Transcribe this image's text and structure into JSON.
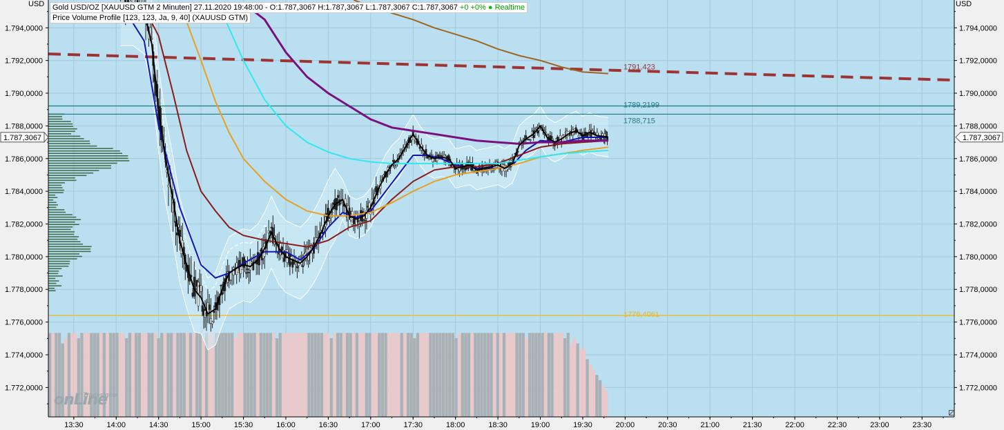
{
  "header": {
    "line1_prefix": "Gold USD/OZ [XAUUSD GTM 2 Minuten] 27.11.2020 19:48:00 - O:1.787,3067 H:1.787,3067 L:1.787,3067 C:1.787,3067",
    "line1_change": "+0 +0%",
    "line1_dot": "●",
    "line1_status": "Realtime",
    "line2": "Price Volume Profile [123, 123, Ja, 9, 40] (XAUUSD GTM)"
  },
  "axis": {
    "left_unit": "USD",
    "right_unit": "USD"
  },
  "logo": {
    "text": "onLine",
    "sub": "Tradesignal"
  },
  "colors": {
    "background": "#b9dff0",
    "grid": "#a6c9d9",
    "candles": "#202020",
    "price_line": "#000000",
    "ma_blue": "#1414b4",
    "ma_maroon": "#8b1a1a",
    "ma_orange": "#e8a020",
    "ma_cyan": "#30e8f0",
    "ma_purple": "#7a1080",
    "ma_brown": "#a0641e",
    "trend_dashed": "#9c3434",
    "hline_teal": "#207880",
    "hline_yellow": "#f0b818",
    "volume_pink": "#ecc8c8",
    "volume_gray": "#aab0b3",
    "profile_green": "#2e5a2e"
  },
  "chart_data": {
    "type": "candlestick",
    "title": "Gold USD/OZ [XAUUSD GTM 2 Minuten]",
    "ylim": [
      1770.2,
      1795.7
    ],
    "y_ticks": [
      1772,
      1774,
      1776,
      1778,
      1780,
      1782,
      1784,
      1786,
      1788,
      1790,
      1792,
      1794
    ],
    "y_tick_labels": [
      "1.772,0000",
      "1.774,0000",
      "1.776,0000",
      "1.778,0000",
      "1.780,0000",
      "1.782,0000",
      "1.784,0000",
      "1.786,0000",
      "1.788,0000",
      "1.790,0000",
      "1.792,0000",
      "1.794,0000"
    ],
    "x_ticks": [
      "13:30",
      "14:00",
      "14:30",
      "15:00",
      "15:30",
      "16:00",
      "16:30",
      "17:00",
      "17:30",
      "18:00",
      "18:30",
      "19:00",
      "19:30",
      "20:00",
      "20:30",
      "21:00",
      "21:30",
      "22:00",
      "22:30",
      "23:00",
      "23:30"
    ],
    "xlim_hours": [
      13.2,
      23.88
    ],
    "last_price_label": "1.787,3067",
    "last_price": 1787.3067,
    "annotations": [
      {
        "label": "1791,423",
        "value": 1791.423,
        "color": "#9c3434"
      },
      {
        "label": "1789,2199",
        "value": 1789.2199,
        "color": "#207880"
      },
      {
        "label": "1788,715",
        "value": 1788.715,
        "color": "#207880"
      },
      {
        "label": "1776,4061",
        "value": 1776.4061,
        "color": "#f0b818"
      }
    ],
    "horizontal_lines": [
      {
        "value": 1789.2199,
        "color": "#207880"
      },
      {
        "value": 1788.715,
        "color": "#207880"
      },
      {
        "value": 1776.4061,
        "color": "#f0b818"
      }
    ],
    "trend_line": {
      "start": [
        13.2,
        1792.4
      ],
      "end": [
        23.88,
        1790.8
      ],
      "style": "dashed"
    },
    "close_path": [
      [
        14.05,
        1795.5
      ],
      [
        14.2,
        1795.5
      ],
      [
        14.33,
        1795.0
      ],
      [
        14.42,
        1793.0
      ],
      [
        14.5,
        1789.0
      ],
      [
        14.58,
        1786.0
      ],
      [
        14.67,
        1783.5
      ],
      [
        14.75,
        1781.0
      ],
      [
        14.83,
        1779.5
      ],
      [
        14.92,
        1778.0
      ],
      [
        15.0,
        1777.5
      ],
      [
        15.08,
        1776.5
      ],
      [
        15.17,
        1776.8
      ],
      [
        15.25,
        1778.0
      ],
      [
        15.33,
        1779.0
      ],
      [
        15.42,
        1779.3
      ],
      [
        15.5,
        1779.5
      ],
      [
        15.58,
        1779.4
      ],
      [
        15.67,
        1779.8
      ],
      [
        15.75,
        1780.5
      ],
      [
        15.83,
        1781.5
      ],
      [
        15.92,
        1780.5
      ],
      [
        16.0,
        1780.0
      ],
      [
        16.08,
        1779.8
      ],
      [
        16.17,
        1779.6
      ],
      [
        16.25,
        1780.0
      ],
      [
        16.33,
        1780.6
      ],
      [
        16.42,
        1781.5
      ],
      [
        16.5,
        1782.5
      ],
      [
        16.58,
        1783.2
      ],
      [
        16.67,
        1783.5
      ],
      [
        16.75,
        1782.5
      ],
      [
        16.83,
        1782.3
      ],
      [
        16.92,
        1782.5
      ],
      [
        17.0,
        1783.0
      ],
      [
        17.08,
        1784.0
      ],
      [
        17.17,
        1785.0
      ],
      [
        17.25,
        1785.6
      ],
      [
        17.33,
        1786.0
      ],
      [
        17.42,
        1786.8
      ],
      [
        17.5,
        1787.5
      ],
      [
        17.58,
        1786.8
      ],
      [
        17.67,
        1786.2
      ],
      [
        17.75,
        1786.0
      ],
      [
        17.83,
        1786.1
      ],
      [
        17.92,
        1786.0
      ],
      [
        18.0,
        1785.4
      ],
      [
        18.08,
        1785.5
      ],
      [
        18.17,
        1785.6
      ],
      [
        18.25,
        1785.3
      ],
      [
        18.33,
        1785.4
      ],
      [
        18.42,
        1785.5
      ],
      [
        18.5,
        1785.6
      ],
      [
        18.58,
        1785.4
      ],
      [
        18.67,
        1785.7
      ],
      [
        18.75,
        1786.8
      ],
      [
        18.83,
        1787.2
      ],
      [
        18.92,
        1787.5
      ],
      [
        19.0,
        1788.0
      ],
      [
        19.08,
        1787.3
      ],
      [
        19.17,
        1787.0
      ],
      [
        19.25,
        1787.2
      ],
      [
        19.33,
        1787.5
      ],
      [
        19.42,
        1787.7
      ],
      [
        19.5,
        1787.4
      ],
      [
        19.58,
        1787.6
      ],
      [
        19.67,
        1787.4
      ],
      [
        19.75,
        1787.35
      ],
      [
        19.8,
        1787.31
      ]
    ],
    "series": [
      {
        "name": "",
        "color": "#1414b4",
        "points": [
          [
            14.05,
            1795.5
          ],
          [
            14.33,
            1793.2
          ],
          [
            14.5,
            1788.0
          ],
          [
            14.75,
            1783.0
          ],
          [
            15.0,
            1779.5
          ],
          [
            15.17,
            1778.7
          ],
          [
            15.33,
            1779.0
          ],
          [
            15.5,
            1779.6
          ],
          [
            15.75,
            1780.3
          ],
          [
            16.0,
            1780.3
          ],
          [
            16.17,
            1779.8
          ],
          [
            16.33,
            1780.5
          ],
          [
            16.5,
            1781.8
          ],
          [
            16.67,
            1782.7
          ],
          [
            16.83,
            1782.4
          ],
          [
            17.0,
            1782.8
          ],
          [
            17.25,
            1784.5
          ],
          [
            17.5,
            1786.2
          ],
          [
            17.67,
            1786.2
          ],
          [
            17.83,
            1786.0
          ],
          [
            18.0,
            1785.6
          ],
          [
            18.25,
            1785.4
          ],
          [
            18.5,
            1785.4
          ],
          [
            18.67,
            1785.6
          ],
          [
            18.83,
            1786.5
          ],
          [
            19.0,
            1787.1
          ],
          [
            19.25,
            1787.0
          ],
          [
            19.5,
            1787.3
          ],
          [
            19.75,
            1787.3
          ],
          [
            19.8,
            1787.3
          ]
        ]
      },
      {
        "name": "",
        "color": "#8b1a1a",
        "points": [
          [
            14.3,
            1795.5
          ],
          [
            14.5,
            1793.5
          ],
          [
            14.67,
            1790.0
          ],
          [
            14.83,
            1786.5
          ],
          [
            15.0,
            1784.0
          ],
          [
            15.17,
            1782.8
          ],
          [
            15.33,
            1781.8
          ],
          [
            15.5,
            1781.3
          ],
          [
            15.75,
            1781.0
          ],
          [
            16.0,
            1780.8
          ],
          [
            16.25,
            1780.6
          ],
          [
            16.5,
            1781.0
          ],
          [
            16.75,
            1781.8
          ],
          [
            17.0,
            1782.2
          ],
          [
            17.25,
            1783.5
          ],
          [
            17.5,
            1784.6
          ],
          [
            17.75,
            1785.3
          ],
          [
            18.0,
            1785.5
          ],
          [
            18.25,
            1785.5
          ],
          [
            18.5,
            1785.7
          ],
          [
            18.75,
            1786.2
          ],
          [
            19.0,
            1786.7
          ],
          [
            19.25,
            1786.9
          ],
          [
            19.5,
            1787.0
          ],
          [
            19.8,
            1787.1
          ]
        ]
      },
      {
        "name": "",
        "color": "#e8a020",
        "points": [
          [
            14.75,
            1795.5
          ],
          [
            15.0,
            1792.0
          ],
          [
            15.17,
            1789.5
          ],
          [
            15.33,
            1787.6
          ],
          [
            15.5,
            1786.0
          ],
          [
            15.75,
            1784.6
          ],
          [
            16.0,
            1783.5
          ],
          [
            16.25,
            1782.8
          ],
          [
            16.5,
            1782.5
          ],
          [
            16.75,
            1782.5
          ],
          [
            17.0,
            1782.7
          ],
          [
            17.25,
            1783.3
          ],
          [
            17.5,
            1784.0
          ],
          [
            17.75,
            1784.6
          ],
          [
            18.0,
            1785.0
          ],
          [
            18.25,
            1785.2
          ],
          [
            18.5,
            1785.4
          ],
          [
            18.75,
            1785.7
          ],
          [
            19.0,
            1786.1
          ],
          [
            19.25,
            1786.3
          ],
          [
            19.5,
            1786.5
          ],
          [
            19.8,
            1786.7
          ]
        ]
      },
      {
        "name": "",
        "color": "#30e8f0",
        "points": [
          [
            15.2,
            1795.5
          ],
          [
            15.5,
            1792.0
          ],
          [
            15.75,
            1789.6
          ],
          [
            16.0,
            1788.0
          ],
          [
            16.25,
            1787.0
          ],
          [
            16.5,
            1786.4
          ],
          [
            16.75,
            1786.0
          ],
          [
            17.0,
            1785.8
          ],
          [
            17.25,
            1785.7
          ],
          [
            17.5,
            1785.7
          ],
          [
            17.75,
            1785.7
          ],
          [
            18.0,
            1785.7
          ],
          [
            18.25,
            1785.7
          ],
          [
            18.5,
            1785.7
          ],
          [
            18.75,
            1785.9
          ],
          [
            19.0,
            1786.1
          ],
          [
            19.25,
            1786.3
          ],
          [
            19.5,
            1786.4
          ],
          [
            19.8,
            1786.5
          ]
        ]
      },
      {
        "name": "",
        "color": "#7a1080",
        "points": [
          [
            15.5,
            1795.5
          ],
          [
            15.75,
            1794.5
          ],
          [
            16.0,
            1792.5
          ],
          [
            16.25,
            1791.0
          ],
          [
            16.5,
            1790.0
          ],
          [
            16.75,
            1789.2
          ],
          [
            17.0,
            1788.4
          ],
          [
            17.25,
            1787.9
          ],
          [
            17.5,
            1787.7
          ],
          [
            17.75,
            1787.5
          ],
          [
            18.0,
            1787.3
          ],
          [
            18.25,
            1787.1
          ],
          [
            18.5,
            1787.0
          ],
          [
            18.75,
            1786.9
          ],
          [
            19.0,
            1787.0
          ],
          [
            19.25,
            1787.0
          ],
          [
            19.5,
            1787.1
          ],
          [
            19.8,
            1787.1
          ]
        ]
      },
      {
        "name": "",
        "color": "#a0641e",
        "points": [
          [
            16.8,
            1795.7
          ],
          [
            17.0,
            1795.3
          ],
          [
            17.25,
            1794.9
          ],
          [
            17.5,
            1794.5
          ],
          [
            17.75,
            1794.0
          ],
          [
            18.0,
            1793.6
          ],
          [
            18.25,
            1793.2
          ],
          [
            18.5,
            1792.7
          ],
          [
            18.75,
            1792.3
          ],
          [
            19.0,
            1792.0
          ],
          [
            19.25,
            1791.6
          ],
          [
            19.5,
            1791.3
          ],
          [
            19.8,
            1791.2
          ]
        ]
      }
    ],
    "volume": [
      16,
      16,
      16,
      16,
      14,
      15,
      16,
      16,
      16,
      15,
      16,
      16,
      16,
      16,
      16,
      16,
      16,
      16,
      16,
      16,
      16,
      16,
      16,
      16,
      15,
      16,
      16,
      16,
      16,
      16,
      16,
      16,
      16,
      16,
      15,
      16,
      16,
      16,
      16,
      16,
      16,
      16,
      16,
      16,
      16,
      16,
      16,
      16,
      15,
      16,
      16,
      16,
      16,
      16,
      16,
      16,
      16,
      16,
      15,
      16,
      16,
      16,
      16,
      16,
      16,
      16,
      16,
      16,
      16,
      16,
      16,
      15,
      16,
      16,
      16,
      16,
      16,
      16,
      16,
      16,
      16,
      16,
      16,
      16,
      16,
      16,
      16,
      16,
      15,
      16,
      16,
      16,
      16,
      16,
      16,
      16,
      16,
      16,
      16,
      16,
      16,
      16,
      16,
      16,
      16,
      16,
      16,
      16,
      16,
      16,
      16,
      16,
      16,
      16,
      15,
      16,
      16,
      16,
      16,
      16,
      16,
      16,
      16,
      16,
      16,
      16,
      16,
      15,
      16,
      16,
      16,
      16,
      16,
      16,
      16,
      16,
      16,
      16,
      16,
      16,
      16,
      16,
      16,
      16,
      16,
      16,
      16,
      16,
      16,
      15,
      16,
      16,
      16,
      16,
      16,
      16,
      16,
      16,
      16,
      16,
      16,
      15,
      16,
      14,
      15,
      14,
      13,
      13,
      11,
      10,
      9,
      8,
      7,
      6,
      5
    ]
  }
}
